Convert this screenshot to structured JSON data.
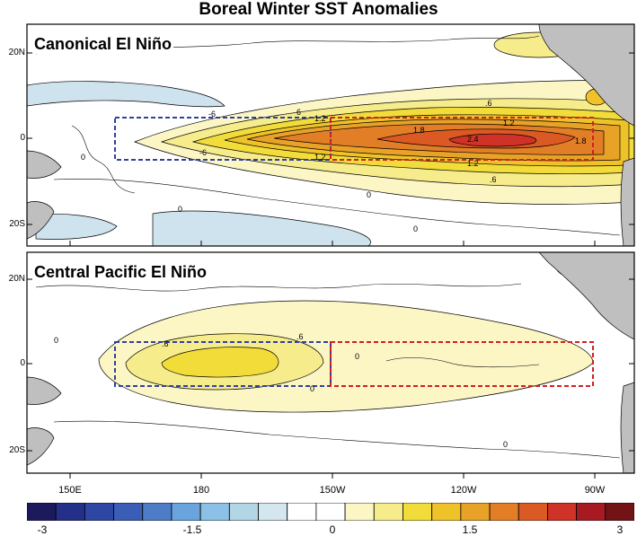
{
  "title": "Boreal Winter SST Anomalies",
  "panels": [
    {
      "label": "Canonical El Niño",
      "lat_labels": [
        "20N",
        "0",
        "20S"
      ],
      "contour_labels": [
        "-6",
        "-6",
        "6",
        "1.2",
        "1.2",
        "1.8",
        "2.4",
        "1.2",
        "1.8",
        "1.2",
        ".6",
        ".6",
        "0",
        "0",
        "0",
        "0"
      ]
    },
    {
      "label": "Central Pacific El Niño",
      "lat_labels": [
        "20N",
        "0",
        "20S"
      ],
      "contour_labels": [
        ".6",
        ".6",
        "0",
        "0",
        "0",
        "0"
      ]
    }
  ],
  "lon_labels": [
    "150E",
    "180",
    "150W",
    "120W",
    "90W"
  ],
  "colorbar": {
    "colors": [
      "#1c1a5c",
      "#243088",
      "#2e46a4",
      "#3a5eb6",
      "#4f7cc6",
      "#6aa4dc",
      "#8cc0e6",
      "#b2d6e6",
      "#d4e6ee",
      "#ffffff",
      "#ffffff",
      "#fbf6c4",
      "#f6ec8c",
      "#f2dc3a",
      "#efc22a",
      "#e9a228",
      "#e27e26",
      "#db5a24",
      "#cf3226",
      "#a81a22",
      "#721416"
    ],
    "tick_labels": [
      "-3",
      "-1.5",
      "0",
      "1.5",
      "3"
    ]
  },
  "regions": [
    {
      "name": "Niño4 box",
      "color": "#3040a0"
    },
    {
      "name": "Niño3 box",
      "color": "#d02020"
    }
  ],
  "land_color": "#bfbfbf",
  "negative_anomaly_color": "#cfe3ee"
}
